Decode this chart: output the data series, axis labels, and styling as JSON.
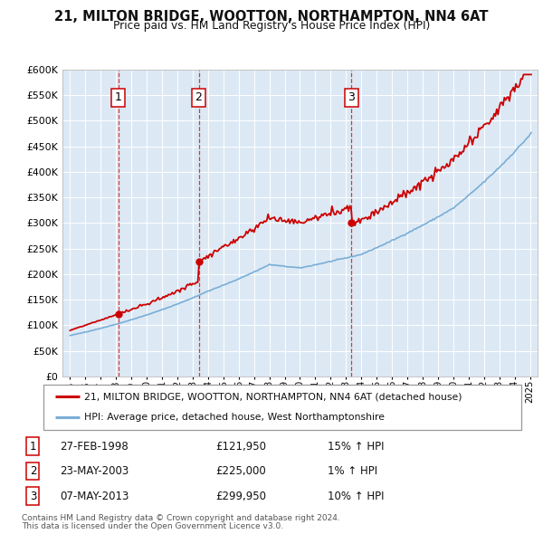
{
  "title": "21, MILTON BRIDGE, WOOTTON, NORTHAMPTON, NN4 6AT",
  "subtitle": "Price paid vs. HM Land Registry's House Price Index (HPI)",
  "legend_line1": "21, MILTON BRIDGE, WOOTTON, NORTHAMPTON, NN4 6AT (detached house)",
  "legend_line2": "HPI: Average price, detached house, West Northamptonshire",
  "sales": [
    {
      "label": "1",
      "date_str": "27-FEB-1998",
      "year": 1998.15,
      "price": 121950,
      "hpi_pct": "15% ↑ HPI"
    },
    {
      "label": "2",
      "date_str": "23-MAY-2003",
      "year": 2003.39,
      "price": 225000,
      "hpi_pct": "1% ↑ HPI"
    },
    {
      "label": "3",
      "date_str": "07-MAY-2013",
      "year": 2013.35,
      "price": 299950,
      "hpi_pct": "10% ↑ HPI"
    }
  ],
  "red_line_color": "#cc0000",
  "blue_line_color": "#7aaed6",
  "bg_color": "#dce9f5",
  "grid_color": "#ffffff",
  "sale_marker_color": "#cc0000",
  "dashed_line_color": "#cc0000",
  "footnote1": "Contains HM Land Registry data © Crown copyright and database right 2024.",
  "footnote2": "This data is licensed under the Open Government Licence v3.0.",
  "ylim": [
    0,
    600000
  ],
  "xlim": [
    1994.5,
    2025.5
  ],
  "yticks": [
    0,
    50000,
    100000,
    150000,
    200000,
    250000,
    300000,
    350000,
    400000,
    450000,
    500000,
    550000,
    600000
  ]
}
